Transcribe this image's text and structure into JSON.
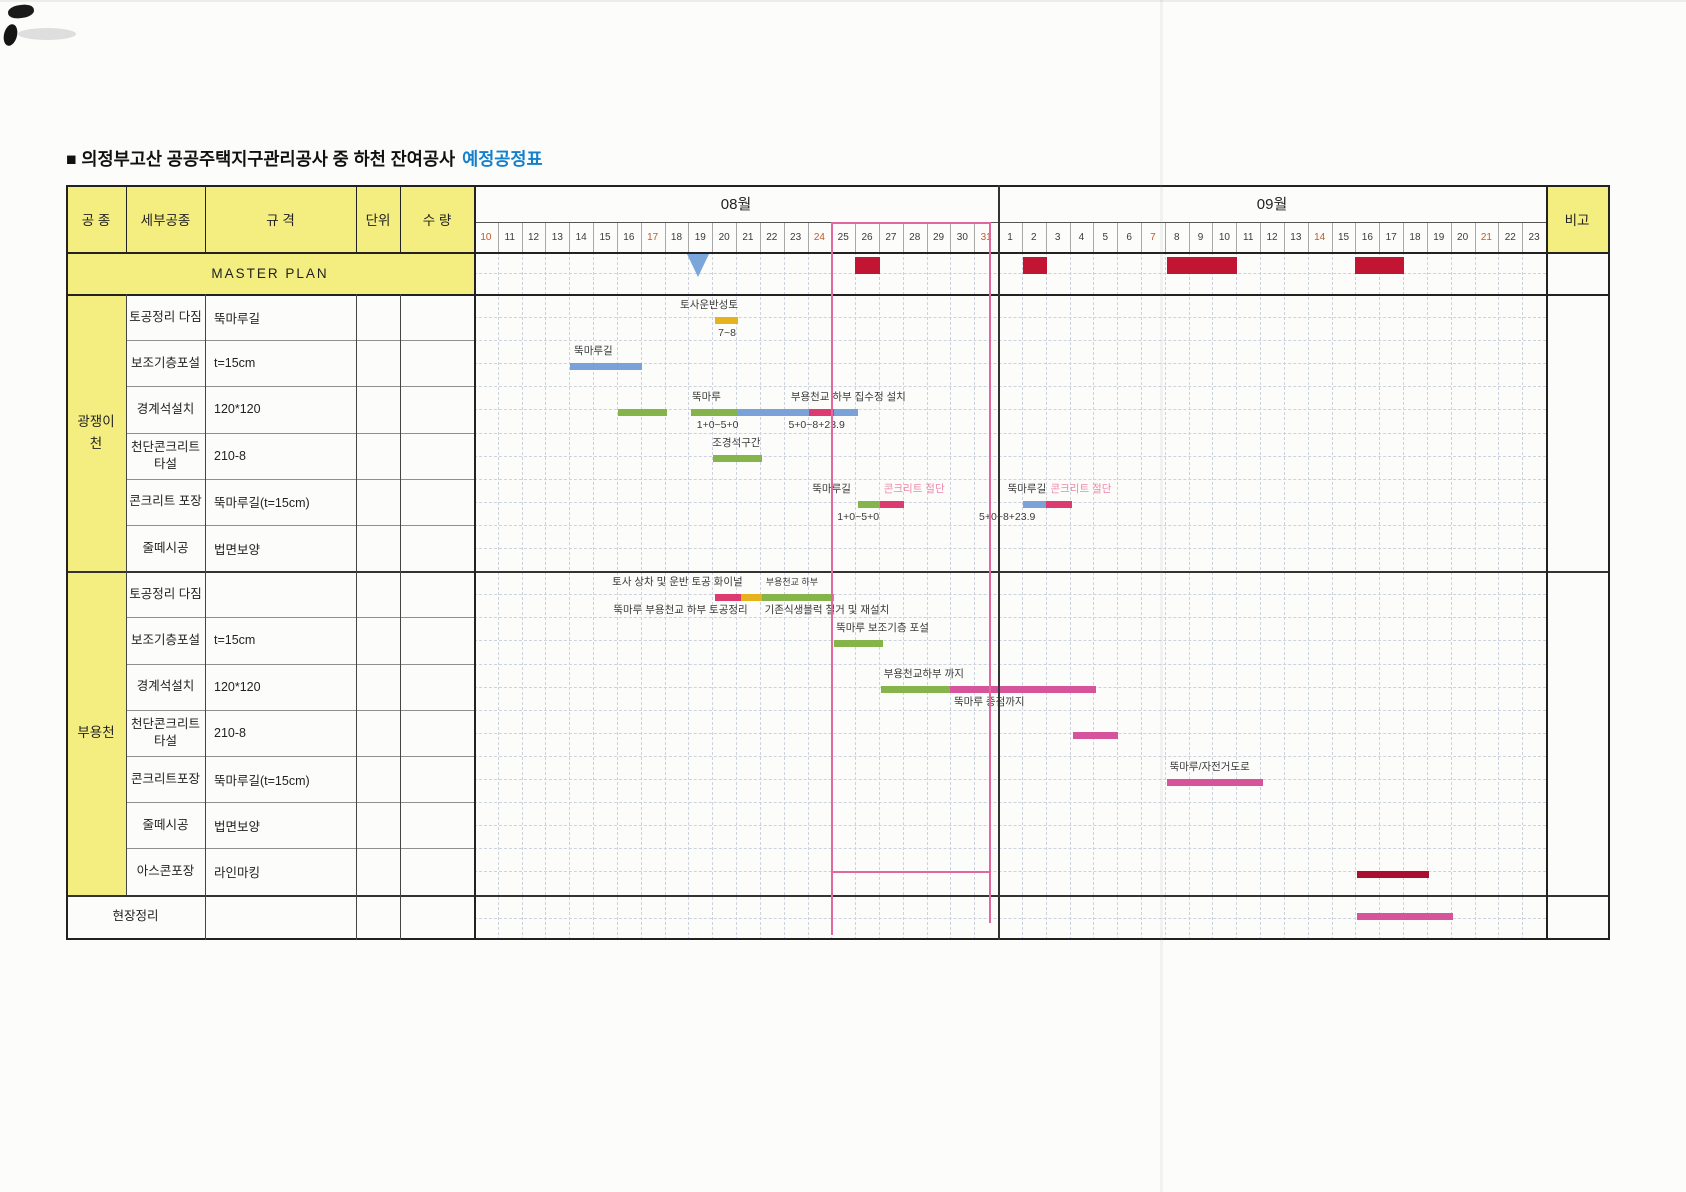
{
  "page": {
    "title_black": "■ 의정부고산 공공주택지구관리공사 중 하천 잔여공사",
    "title_highlight": "예정공정표"
  },
  "colors": {
    "yellow": "#f4ee80",
    "title_blue": "#1380cd",
    "sunday": "#c05a2c",
    "weekday": "#3b3b3b",
    "crimson": "#c21433",
    "gold": "#e6b31e",
    "blue": "#7ba2d8",
    "green": "#85b54a",
    "rose": "#dd3a72",
    "pink": "#d6549b",
    "dark_red": "#ab0f2f",
    "pink_text": "#ee87ae",
    "box_border": "#e3679d",
    "triangle_blue": "#7aa6da"
  },
  "header": {
    "col_work": "공  종",
    "col_detail": "세부공종",
    "col_spec": "규 격",
    "col_unit": "단위",
    "col_qty": "수 량",
    "col_remark": "비고",
    "months": [
      {
        "label": "08월",
        "days": [
          10,
          11,
          12,
          13,
          14,
          15,
          16,
          17,
          18,
          19,
          20,
          21,
          22,
          23,
          24,
          25,
          26,
          27,
          28,
          29,
          30,
          31
        ],
        "sundays": [
          10,
          17,
          24,
          31
        ]
      },
      {
        "label": "09월",
        "days": [
          1,
          2,
          3,
          4,
          5,
          6,
          7,
          8,
          9,
          10,
          11,
          12,
          13,
          14,
          15,
          16,
          17,
          18,
          19,
          20,
          21,
          22,
          23
        ],
        "sundays": [
          7,
          14,
          21
        ]
      }
    ]
  },
  "chart_axis": {
    "start": "8/10",
    "end": "9/23",
    "total_days": 45,
    "highlight_range": "8/25~8/31"
  },
  "master_plan": {
    "label": "MASTER PLAN",
    "milestone": {
      "date": "8/19",
      "i": 9.4
    },
    "bars": [
      {
        "range": "8/26",
        "s": 16.0,
        "e": 17.05
      },
      {
        "range": "9/2",
        "s": 23.05,
        "e": 24.05
      },
      {
        "range": "9/8~9/10",
        "s": 29.1,
        "e": 32.05
      },
      {
        "range": "9/16~9/17",
        "s": 37.0,
        "e": 39.05
      }
    ]
  },
  "groups": [
    {
      "name": "광쟁이 천",
      "name_lines": "광쟁이\n천",
      "rows": [
        {
          "detail": "토공정리 다짐",
          "spec": "뚝마루길",
          "bars": [
            {
              "range": "8/20",
              "s": 10.1,
              "e": 11.1,
              "color": "gold"
            }
          ],
          "anns": [
            {
              "t": "토사운반성토",
              "i": 8.65,
              "pos": "above"
            },
            {
              "t": "7~8",
              "i": 10.25,
              "pos": "below"
            }
          ]
        },
        {
          "detail": "보조기층포설",
          "spec": "t=15cm",
          "bars": [
            {
              "range": "8/14~8/16",
              "s": 4.05,
              "e": 7.05,
              "color": "blue"
            }
          ],
          "anns": [
            {
              "t": "뚝마루길",
              "i": 4.2,
              "pos": "above"
            }
          ]
        },
        {
          "detail": "경계석설치",
          "spec": "120*120",
          "bars": [
            {
              "range": "8/16~8/17",
              "s": 6.05,
              "e": 8.1,
              "color": "green"
            },
            {
              "range": "8/19~8/20",
              "s": 9.1,
              "e": 11.1,
              "color": "green"
            },
            {
              "range": "8/21~8/23",
              "s": 11.1,
              "e": 14.05,
              "color": "blue"
            },
            {
              "range": "8/24",
              "s": 14.05,
              "e": 15.1,
              "color": "rose"
            },
            {
              "range": "8/25",
              "s": 15.1,
              "e": 16.1,
              "color": "blue"
            }
          ],
          "anns": [
            {
              "t": "뚝마루",
              "i": 9.15,
              "pos": "above"
            },
            {
              "t": "부용천교 하부 집수정 설치",
              "i": 13.3,
              "pos": "above"
            },
            {
              "t": "1+0~5+0",
              "i": 9.35,
              "pos": "below"
            },
            {
              "t": "5+0~8+23.9",
              "i": 13.2,
              "pos": "below"
            }
          ]
        },
        {
          "detail": "천단콘크리트\n타설",
          "spec": "210-8",
          "bars": [
            {
              "range": "8/20~8/21",
              "s": 10.05,
              "e": 12.1,
              "color": "green"
            }
          ],
          "anns": [
            {
              "t": "조경석구간",
              "i": 10.0,
              "pos": "above"
            }
          ]
        },
        {
          "detail": "콘크리트 포장",
          "spec": "뚝마루길(t=15cm)",
          "bars": [
            {
              "range": "8/26",
              "s": 16.1,
              "e": 17.05,
              "color": "green"
            },
            {
              "range": "8/27",
              "s": 17.05,
              "e": 18.05,
              "color": "rose"
            },
            {
              "range": "9/2",
              "s": 23.05,
              "e": 24.0,
              "color": "blue"
            },
            {
              "range": "9/3",
              "s": 24.0,
              "e": 25.1,
              "color": "rose"
            }
          ],
          "anns": [
            {
              "t": "뚝마루길",
              "i": 14.2,
              "pos": "above"
            },
            {
              "t": "콘크리트 절단",
              "i": 17.2,
              "pos": "above",
              "pink": true
            },
            {
              "t": "1+0~5+0",
              "i": 15.25,
              "pos": "below"
            },
            {
              "t": "뚝마루길",
              "i": 22.4,
              "pos": "above"
            },
            {
              "t": "콘크리트 절단",
              "i": 24.2,
              "pos": "above",
              "pink": true
            },
            {
              "t": "5+0~8+23.9",
              "i": 21.2,
              "pos": "below"
            }
          ]
        },
        {
          "detail": "줄떼시공",
          "spec": "법면보양",
          "bars": [],
          "anns": []
        }
      ]
    },
    {
      "name": "부용천",
      "name_lines": "부용천",
      "rows": [
        {
          "detail": "토공정리 다짐",
          "spec": "",
          "bars": [
            {
              "range": "8/20",
              "s": 10.1,
              "e": 11.2,
              "color": "rose"
            },
            {
              "range": "8/21",
              "s": 11.2,
              "e": 12.1,
              "color": "gold"
            },
            {
              "range": "8/22~8/24",
              "s": 12.1,
              "e": 15.1,
              "color": "green"
            }
          ],
          "anns": [
            {
              "t": "토사 상차 및 운반 토공 화이널",
              "i": 5.8,
              "pos": "above"
            },
            {
              "t": "부용천교 하부",
              "i": 12.25,
              "pos": "above",
              "small": true
            },
            {
              "t": "뚝마루 부용천교 하부 토공정리",
              "i": 5.85,
              "pos": "below"
            },
            {
              "t": "기존식생블럭 철거 및 재설치",
              "i": 12.2,
              "pos": "below"
            }
          ]
        },
        {
          "detail": "보조기층포설",
          "spec": "t=15cm",
          "bars": [
            {
              "range": "8/25~8/26",
              "s": 15.1,
              "e": 17.15,
              "color": "green"
            }
          ],
          "anns": [
            {
              "t": "뚝마루 보조기층 포설",
              "i": 15.2,
              "pos": "above"
            }
          ]
        },
        {
          "detail": "경계석설치",
          "spec": "120*120",
          "bars": [
            {
              "range": "8/27~8/29",
              "s": 17.1,
              "e": 20.0,
              "color": "green"
            },
            {
              "range": "8/30~9/4",
              "s": 20.0,
              "e": 26.1,
              "color": "pink"
            }
          ],
          "anns": [
            {
              "t": "부용천교하부 까지",
              "i": 17.2,
              "pos": "above"
            },
            {
              "t": "뚝마루 종점까지",
              "i": 20.15,
              "pos": "below"
            }
          ]
        },
        {
          "detail": "천단콘크리트\n타설",
          "spec": "210-8",
          "bars": [
            {
              "range": "9/4~9/5",
              "s": 25.15,
              "e": 27.05,
              "color": "pink"
            }
          ],
          "anns": []
        },
        {
          "detail": "콘크리트포장",
          "spec": "뚝마루길(t=15cm)",
          "bars": [
            {
              "range": "9/8~9/11",
              "s": 29.1,
              "e": 33.1,
              "color": "pink"
            }
          ],
          "anns": [
            {
              "t": "뚝마루/자전거도로",
              "i": 29.2,
              "pos": "above"
            }
          ]
        },
        {
          "detail": "줄떼시공",
          "spec": "법면보양",
          "bars": [],
          "anns": []
        },
        {
          "detail": "아스콘포장",
          "spec": "라인마킹",
          "bars": [
            {
              "range": "9/16~9/18",
              "s": 37.05,
              "e": 40.1,
              "color": "dark_red"
            }
          ],
          "anns": []
        }
      ]
    }
  ],
  "footer": {
    "label": "현장정리",
    "bars": [
      {
        "range": "9/16~9/19",
        "s": 37.05,
        "e": 41.1,
        "color": "pink"
      }
    ]
  }
}
